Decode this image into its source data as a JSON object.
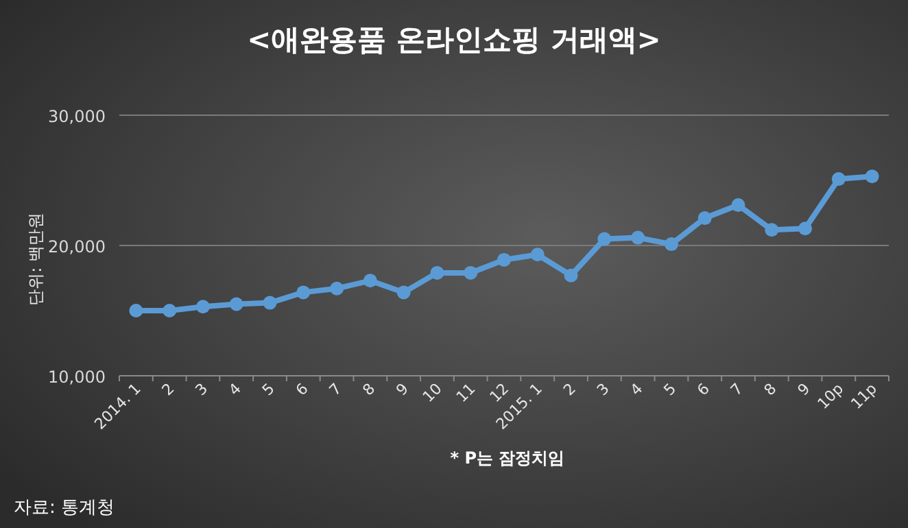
{
  "chart_data": {
    "type": "line",
    "title": "<애완용품 온라인쇼핑 거래액>",
    "ylabel": "단위: 백만원",
    "categories": [
      "2014. 1",
      "2",
      "3",
      "4",
      "5",
      "6",
      "7",
      "8",
      "9",
      "10",
      "11",
      "12",
      "2015. 1",
      "2",
      "3",
      "4",
      "5",
      "6",
      "7",
      "8",
      "9",
      "10p",
      "11p"
    ],
    "series": [
      {
        "color": "#5b9bd5",
        "values": [
          15000,
          15000,
          15300,
          15500,
          15600,
          16400,
          16700,
          17300,
          16400,
          17900,
          17900,
          18900,
          19300,
          17700,
          20500,
          20600,
          20100,
          22100,
          23100,
          21200,
          21300,
          25100,
          25300
        ]
      }
    ],
    "ylim": [
      10000,
      30000
    ],
    "yticks": [
      {
        "value": 10000,
        "label": "10,000"
      },
      {
        "value": 20000,
        "label": "20,000"
      },
      {
        "value": 30000,
        "label": "30,000"
      }
    ],
    "grid": "y",
    "marker": "circle",
    "line_style": "solid",
    "annotations": [
      "* P는 잠정치임",
      "자료: 통계청"
    ]
  }
}
